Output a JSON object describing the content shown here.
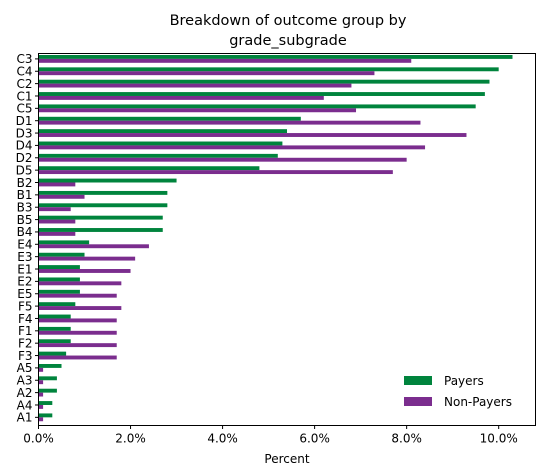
{
  "chart_data": {
    "type": "bar",
    "orientation": "horizontal",
    "title_lines": [
      "Breakdown of outcome group by",
      "grade_subgrade"
    ],
    "xlabel": "Percent",
    "ylabel": "",
    "xlim": [
      0,
      0.108
    ],
    "x_ticks": [
      0,
      0.02,
      0.04,
      0.06,
      0.08,
      0.1
    ],
    "x_tick_labels": [
      "0.0%",
      "2.0%",
      "4.0%",
      "6.0%",
      "8.0%",
      "10.0%"
    ],
    "grid": false,
    "legend_position": "lower-right",
    "categories": [
      "C3",
      "C4",
      "C2",
      "C1",
      "C5",
      "D1",
      "D3",
      "D4",
      "D2",
      "D5",
      "B2",
      "B1",
      "B3",
      "B5",
      "B4",
      "E4",
      "E3",
      "E1",
      "E2",
      "E5",
      "F5",
      "F4",
      "F1",
      "F2",
      "F3",
      "A5",
      "A3",
      "A2",
      "A4",
      "A1"
    ],
    "series": [
      {
        "name": "Payers",
        "color": "#00843d",
        "values": [
          0.103,
          0.1,
          0.098,
          0.097,
          0.095,
          0.057,
          0.054,
          0.053,
          0.052,
          0.048,
          0.03,
          0.028,
          0.028,
          0.027,
          0.027,
          0.011,
          0.01,
          0.009,
          0.009,
          0.009,
          0.008,
          0.007,
          0.007,
          0.007,
          0.006,
          0.005,
          0.004,
          0.004,
          0.003,
          0.003
        ]
      },
      {
        "name": "Non-Payers",
        "color": "#7b2d8e",
        "values": [
          0.081,
          0.073,
          0.068,
          0.062,
          0.069,
          0.083,
          0.093,
          0.084,
          0.08,
          0.077,
          0.008,
          0.01,
          0.007,
          0.008,
          0.008,
          0.024,
          0.021,
          0.02,
          0.018,
          0.017,
          0.018,
          0.017,
          0.017,
          0.017,
          0.017,
          0.001,
          0.001,
          0.001,
          0.001,
          0.001
        ]
      }
    ]
  }
}
